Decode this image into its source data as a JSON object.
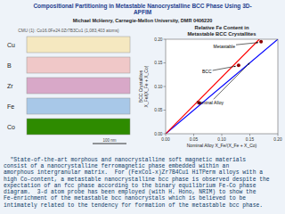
{
  "title": "Compositional Partitioning in Metastable Nanocrystalline BCC Phase Using 3D-\nAPFIM",
  "subtitle": "Michael McHenry,  Carnegie-Mellon University, DMR 0406220",
  "element_map": {
    "title": "CMU (1):  Co16.0Fe24.0Zr7B3Cu1 (1,083,403 atoms)",
    "elements": [
      "Co",
      "Fe",
      "Zr",
      "B",
      "Cu"
    ],
    "colors": [
      "#2e8b00",
      "#a8c8e8",
      "#d8a8c8",
      "#f0c8c8",
      "#f5e8c0"
    ],
    "scale_bar": "100 nm"
  },
  "chart_data": {
    "type": "scatter",
    "title": "Relative Fe Content in\nMetastable BCC Crystallites",
    "x_label": "Nominal Alloy  X_Fe/(X_Fe + X_Co)",
    "y_label": "BCC Crystallites\nX_Fe/(X_Fe + X_Co)",
    "xlim": [
      0,
      0.2
    ],
    "ylim": [
      0,
      0.2
    ],
    "xticks": [
      {
        "value": 0,
        "label": "0.00"
      },
      0.05,
      {
        "value": 0.1,
        "label": "0.10"
      },
      0.15,
      {
        "value": 0.2,
        "label": "0.20"
      }
    ],
    "yticks": [
      {
        "value": 0,
        "label": "0.00"
      },
      0.05,
      {
        "value": 0.1,
        "label": "0.10"
      },
      0.15,
      {
        "value": 0.2,
        "label": "0.20"
      }
    ],
    "grid": false,
    "series": [
      {
        "type": "line",
        "color": "#0000ff",
        "line_style": "solid",
        "x": [
          0,
          0.2
        ],
        "values": [
          0,
          0.2
        ]
      },
      {
        "type": "line",
        "color": "#ff0000",
        "line_style": "solid",
        "x": [
          0,
          0.167
        ],
        "values": [
          0,
          0.2
        ]
      },
      {
        "type": "scatter",
        "color": "#8b0000",
        "marker": "circle",
        "x": [
          0.06,
          0.13,
          0.17
        ],
        "values": [
          0.065,
          0.145,
          0.195
        ]
      }
    ],
    "annotations": [
      {
        "text": "Metastable",
        "x": 0.165,
        "y": 0.193,
        "text_x": 0.085,
        "text_y": 0.182
      },
      {
        "text": "BCC",
        "x": 0.125,
        "y": 0.143,
        "text_x": 0.065,
        "text_y": 0.128
      },
      {
        "text": "Nominal Alloy",
        "x": 0.15,
        "y": 0.15,
        "text_x": 0.055,
        "text_y": 0.062
      }
    ]
  },
  "bottom_text": "  \"State-of-the-art morphous and nanocrystalline soft magnetic materials\nconsist of a nanocrystalline ferromagnetic phase embedded within an\namorphous intergranular matrix.  For (FexCo1-x)Zr7B4Cu1 HiTPerm alloys with a\nhigh Co-content, a metastable nanocrystalline bcc phase is observed despite the\nexpectation of an fcc phase according to the binary equilibrium Fe-Co phase\ndiagram.  3-d atom probe has been employed (with H. Hono, NRIM) to show the\nFe-enrichment of the metastable bcc nanocrystals which is believed to be\nintimately related to the tendency for formation of the metastable bcc phase."
}
